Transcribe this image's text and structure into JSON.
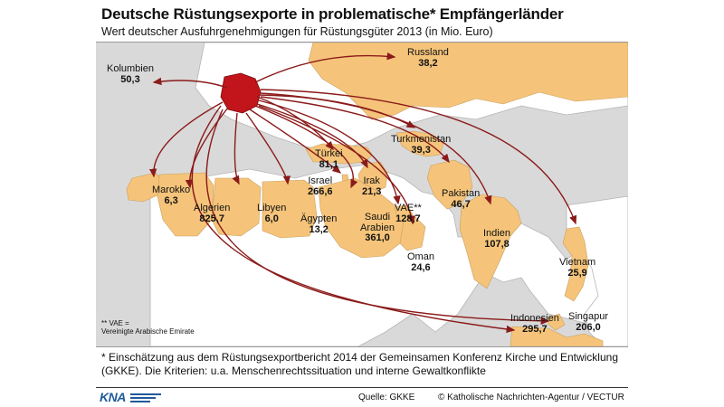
{
  "title": "Deutsche Rüstungsexporte in problematische* Empfängerländer",
  "subtitle": "Wert deutscher Ausfuhrgenehmigungen für Rüstungsgüter 2013 (in Mio. Euro)",
  "colors": {
    "highlight_country": "#f5c47a",
    "background_land": "#ffffff",
    "sea": "#d9d9d9",
    "origin_germany": "#c1151b",
    "arrow": "#8b1a1a"
  },
  "origin": {
    "name": "Deutschland",
    "icon": "germany-shape"
  },
  "destinations": [
    {
      "name": "Kolumbien",
      "value": "50,3"
    },
    {
      "name": "Russland",
      "value": "38,2"
    },
    {
      "name": "Türkei",
      "value": "81,1"
    },
    {
      "name": "Turkmenistan",
      "value": "39,3"
    },
    {
      "name": "Israel",
      "value": "266,6"
    },
    {
      "name": "Irak",
      "value": "21,3"
    },
    {
      "name": "Marokko",
      "value": "6,3"
    },
    {
      "name": "VAE**",
      "value": "128,7"
    },
    {
      "name": "Pakistan",
      "value": "46,7"
    },
    {
      "name": "Algerien",
      "value": "825,7"
    },
    {
      "name": "Libyen",
      "value": "6,0"
    },
    {
      "name": "Ägypten",
      "value": "13,2"
    },
    {
      "name": "Saudi Arabien",
      "value": "361,0"
    },
    {
      "name": "Indien",
      "value": "107,8"
    },
    {
      "name": "Oman",
      "value": "24,6"
    },
    {
      "name": "Vietnam",
      "value": "25,9"
    },
    {
      "name": "Indonesien",
      "value": "295,7"
    },
    {
      "name": "Singapur",
      "value": "206,0"
    }
  ],
  "abbreviation_note": {
    "line1": "** VAE =",
    "line2": "Vereinigte Arabische Emirate"
  },
  "footnote": "* Einschätzung aus dem Rüstungsexportbericht 2014 der Gemeinsamen Konferenz Kirche und Entwicklung (GKKE). Die Kriterien: u.a. Menschenrechtssituation und interne Gewaltkonflikte",
  "source": "Quelle: GKKE",
  "credit": "© Katholische Nachrichten-Agentur / VECTUR",
  "logo": "KNA"
}
